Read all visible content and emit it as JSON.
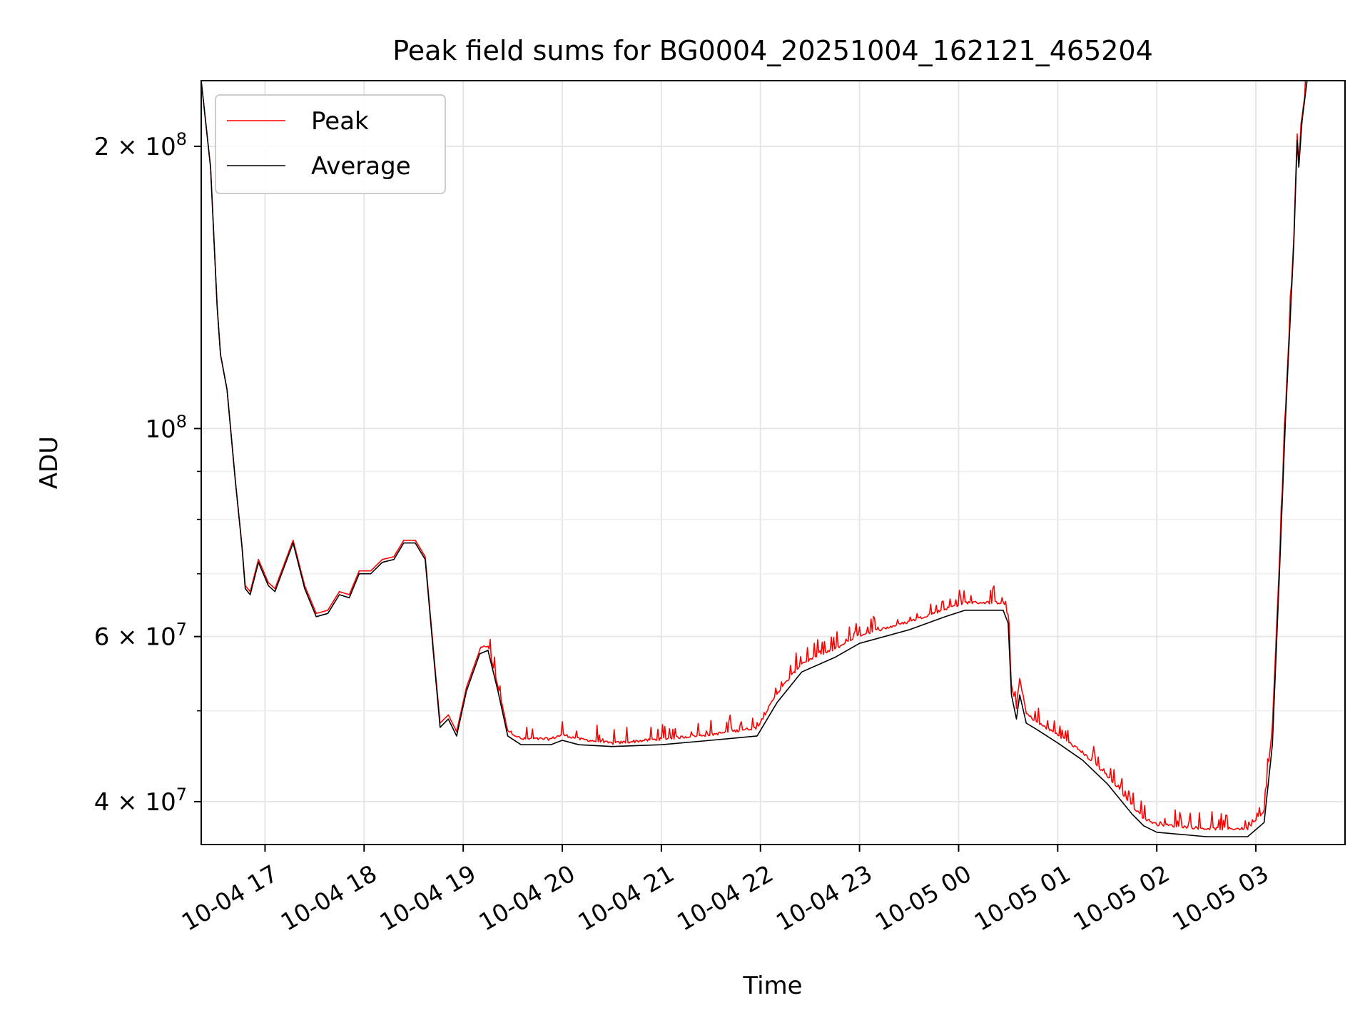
{
  "chart_data": {
    "type": "line",
    "title": "Peak field sums for BG0004_20251004_162121_465204",
    "xlabel": "Time",
    "ylabel": "ADU",
    "yscale": "log",
    "ylim": [
      36000000,
      235000000
    ],
    "xlim": [
      "2025-10-04T16:21:21",
      "2025-10-05T03:54:00"
    ],
    "grid": true,
    "legend_position": "upper left",
    "x_ticks": [
      {
        "t": "2025-10-04T17:00",
        "label": "10-04 17"
      },
      {
        "t": "2025-10-04T18:00",
        "label": "10-04 18"
      },
      {
        "t": "2025-10-04T19:00",
        "label": "10-04 19"
      },
      {
        "t": "2025-10-04T20:00",
        "label": "10-04 20"
      },
      {
        "t": "2025-10-04T21:00",
        "label": "10-04 21"
      },
      {
        "t": "2025-10-04T22:00",
        "label": "10-04 22"
      },
      {
        "t": "2025-10-04T23:00",
        "label": "10-04 23"
      },
      {
        "t": "2025-10-05T00:00",
        "label": "10-05 00"
      },
      {
        "t": "2025-10-05T01:00",
        "label": "10-05 01"
      },
      {
        "t": "2025-10-05T02:00",
        "label": "10-05 02"
      },
      {
        "t": "2025-10-05T03:00",
        "label": "10-05 03"
      }
    ],
    "y_ticks_major": [
      {
        "v": 40000000,
        "mant": "4",
        "exp": "7"
      },
      {
        "v": 60000000,
        "mant": "6",
        "exp": "7"
      },
      {
        "v": 100000000,
        "mant": "",
        "exp": "8"
      },
      {
        "v": 200000000,
        "mant": "2",
        "exp": "8"
      }
    ],
    "y_ticks_minor": [
      50000000,
      70000000,
      80000000,
      90000000
    ],
    "series": [
      {
        "name": "Peak",
        "color": "#ff0000",
        "spiky": true,
        "points": [
          [
            "2025-10-04T16:21:21",
            235000000
          ],
          [
            "2025-10-04T16:27:00",
            190000000
          ],
          [
            "2025-10-04T16:31:00",
            135000000
          ],
          [
            "2025-10-04T16:33:00",
            120000000
          ],
          [
            "2025-10-04T16:37:00",
            110000000
          ],
          [
            "2025-10-04T16:42:00",
            88000000
          ],
          [
            "2025-10-04T16:46:00",
            75000000
          ],
          [
            "2025-10-04T16:48:00",
            68000000
          ],
          [
            "2025-10-04T16:51:00",
            67000000
          ],
          [
            "2025-10-04T16:56:00",
            72500000
          ],
          [
            "2025-10-04T17:02:00",
            68500000
          ],
          [
            "2025-10-04T17:06:00",
            67500000
          ],
          [
            "2025-10-04T17:12:00",
            72000000
          ],
          [
            "2025-10-04T17:17:00",
            76000000
          ],
          [
            "2025-10-04T17:24:00",
            68000000
          ],
          [
            "2025-10-04T17:31:00",
            63500000
          ],
          [
            "2025-10-04T17:38:00",
            64000000
          ],
          [
            "2025-10-04T17:45:00",
            67000000
          ],
          [
            "2025-10-04T17:51:00",
            66500000
          ],
          [
            "2025-10-04T17:57:00",
            70500000
          ],
          [
            "2025-10-04T18:04:00",
            70500000
          ],
          [
            "2025-10-04T18:11:00",
            72500000
          ],
          [
            "2025-10-04T18:18:00",
            73000000
          ],
          [
            "2025-10-04T18:24:00",
            76000000
          ],
          [
            "2025-10-04T18:31:00",
            76000000
          ],
          [
            "2025-10-04T18:37:00",
            73000000
          ],
          [
            "2025-10-04T18:42:00",
            58000000
          ],
          [
            "2025-10-04T18:46:00",
            48500000
          ],
          [
            "2025-10-04T18:51:00",
            49500000
          ],
          [
            "2025-10-04T18:56:00",
            47500000
          ],
          [
            "2025-10-04T19:02:00",
            53000000
          ],
          [
            "2025-10-04T19:10:00",
            58000000
          ],
          [
            "2025-10-04T19:15:00",
            58500000
          ],
          [
            "2025-10-04T19:21:00",
            53000000
          ],
          [
            "2025-10-04T19:27:00",
            47500000
          ],
          [
            "2025-10-04T19:35:00",
            46500000
          ],
          [
            "2025-10-04T19:53:00",
            46500000
          ],
          [
            "2025-10-04T20:00:00",
            47000000
          ],
          [
            "2025-10-04T20:10:00",
            46500000
          ],
          [
            "2025-10-04T20:30:00",
            46000000
          ],
          [
            "2025-10-04T21:00:00",
            46500000
          ],
          [
            "2025-10-04T21:30:00",
            47000000
          ],
          [
            "2025-10-04T21:58:00",
            47800000
          ],
          [
            "2025-10-04T22:10:00",
            52000000
          ],
          [
            "2025-10-04T22:25:00",
            56000000
          ],
          [
            "2025-10-04T22:45:00",
            58000000
          ],
          [
            "2025-10-04T23:00:00",
            60000000
          ],
          [
            "2025-10-04T23:30:00",
            62000000
          ],
          [
            "2025-10-04T23:52:00",
            64000000
          ],
          [
            "2025-10-05T00:04:00",
            65000000
          ],
          [
            "2025-10-05T00:27:00",
            65000000
          ],
          [
            "2025-10-05T00:30:00",
            63000000
          ],
          [
            "2025-10-05T00:32:00",
            53000000
          ],
          [
            "2025-10-05T00:35:00",
            50000000
          ],
          [
            "2025-10-05T00:37:00",
            54000000
          ],
          [
            "2025-10-05T00:41:00",
            49500000
          ],
          [
            "2025-10-05T00:47:00",
            48500000
          ],
          [
            "2025-10-05T01:00:00",
            47000000
          ],
          [
            "2025-10-05T01:15:00",
            45000000
          ],
          [
            "2025-10-05T01:30:00",
            42500000
          ],
          [
            "2025-10-05T01:45:00",
            39500000
          ],
          [
            "2025-10-05T01:52:00",
            38300000
          ],
          [
            "2025-10-05T02:00:00",
            37700000
          ],
          [
            "2025-10-05T02:30:00",
            37300000
          ],
          [
            "2025-10-05T02:55:00",
            37300000
          ],
          [
            "2025-10-05T03:05:00",
            39000000
          ],
          [
            "2025-10-05T03:10:00",
            48000000
          ],
          [
            "2025-10-05T03:14:00",
            70000000
          ],
          [
            "2025-10-05T03:18:00",
            105000000
          ],
          [
            "2025-10-05T03:23:00",
            160000000
          ],
          [
            "2025-10-05T03:25:00",
            205000000
          ],
          [
            "2025-10-05T03:26:00",
            192000000
          ],
          [
            "2025-10-05T03:28:00",
            215000000
          ],
          [
            "2025-10-05T03:31:00",
            235000000
          ],
          [
            "2025-10-05T03:54:00",
            235000000
          ]
        ]
      },
      {
        "name": "Average",
        "color": "#000000",
        "spiky": false,
        "points": [
          [
            "2025-10-04T16:21:21",
            235000000
          ],
          [
            "2025-10-04T16:27:00",
            190000000
          ],
          [
            "2025-10-04T16:31:00",
            135000000
          ],
          [
            "2025-10-04T16:33:00",
            120000000
          ],
          [
            "2025-10-04T16:37:00",
            110000000
          ],
          [
            "2025-10-04T16:42:00",
            88000000
          ],
          [
            "2025-10-04T16:46:00",
            75000000
          ],
          [
            "2025-10-04T16:48:00",
            67500000
          ],
          [
            "2025-10-04T16:51:00",
            66500000
          ],
          [
            "2025-10-04T16:56:00",
            72000000
          ],
          [
            "2025-10-04T17:02:00",
            68000000
          ],
          [
            "2025-10-04T17:06:00",
            67000000
          ],
          [
            "2025-10-04T17:12:00",
            71500000
          ],
          [
            "2025-10-04T17:17:00",
            75500000
          ],
          [
            "2025-10-04T17:24:00",
            67500000
          ],
          [
            "2025-10-04T17:31:00",
            63000000
          ],
          [
            "2025-10-04T17:38:00",
            63500000
          ],
          [
            "2025-10-04T17:45:00",
            66500000
          ],
          [
            "2025-10-04T17:51:00",
            66000000
          ],
          [
            "2025-10-04T17:57:00",
            70000000
          ],
          [
            "2025-10-04T18:04:00",
            70000000
          ],
          [
            "2025-10-04T18:11:00",
            72000000
          ],
          [
            "2025-10-04T18:18:00",
            72500000
          ],
          [
            "2025-10-04T18:24:00",
            75500000
          ],
          [
            "2025-10-04T18:31:00",
            75500000
          ],
          [
            "2025-10-04T18:37:00",
            72500000
          ],
          [
            "2025-10-04T18:42:00",
            57500000
          ],
          [
            "2025-10-04T18:46:00",
            48000000
          ],
          [
            "2025-10-04T18:51:00",
            49000000
          ],
          [
            "2025-10-04T18:56:00",
            47000000
          ],
          [
            "2025-10-04T19:02:00",
            52500000
          ],
          [
            "2025-10-04T19:10:00",
            57500000
          ],
          [
            "2025-10-04T19:15:00",
            58000000
          ],
          [
            "2025-10-04T19:21:00",
            52500000
          ],
          [
            "2025-10-04T19:27:00",
            47000000
          ],
          [
            "2025-10-04T19:35:00",
            46000000
          ],
          [
            "2025-10-04T19:53:00",
            46000000
          ],
          [
            "2025-10-04T20:00:00",
            46500000
          ],
          [
            "2025-10-04T20:10:00",
            46000000
          ],
          [
            "2025-10-04T20:30:00",
            45800000
          ],
          [
            "2025-10-04T21:00:00",
            46000000
          ],
          [
            "2025-10-04T21:30:00",
            46500000
          ],
          [
            "2025-10-04T21:58:00",
            47000000
          ],
          [
            "2025-10-04T22:10:00",
            51000000
          ],
          [
            "2025-10-04T22:25:00",
            55000000
          ],
          [
            "2025-10-04T22:45:00",
            57000000
          ],
          [
            "2025-10-04T23:00:00",
            59000000
          ],
          [
            "2025-10-04T23:30:00",
            61000000
          ],
          [
            "2025-10-04T23:52:00",
            63000000
          ],
          [
            "2025-10-05T00:04:00",
            64000000
          ],
          [
            "2025-10-05T00:27:00",
            64000000
          ],
          [
            "2025-10-05T00:30:00",
            62000000
          ],
          [
            "2025-10-05T00:32:00",
            52000000
          ],
          [
            "2025-10-05T00:35:00",
            49000000
          ],
          [
            "2025-10-05T00:37:00",
            52000000
          ],
          [
            "2025-10-05T00:41:00",
            48500000
          ],
          [
            "2025-10-05T00:47:00",
            47800000
          ],
          [
            "2025-10-05T01:00:00",
            46200000
          ],
          [
            "2025-10-05T01:15:00",
            44300000
          ],
          [
            "2025-10-05T01:30:00",
            41800000
          ],
          [
            "2025-10-05T01:45:00",
            38800000
          ],
          [
            "2025-10-05T01:52:00",
            37700000
          ],
          [
            "2025-10-05T02:00:00",
            37100000
          ],
          [
            "2025-10-05T02:30:00",
            36700000
          ],
          [
            "2025-10-05T02:55:00",
            36700000
          ],
          [
            "2025-10-05T03:05:00",
            38000000
          ],
          [
            "2025-10-05T03:10:00",
            46000000
          ],
          [
            "2025-10-05T03:14:00",
            68000000
          ],
          [
            "2025-10-05T03:18:00",
            103000000
          ],
          [
            "2025-10-05T03:23:00",
            158000000
          ],
          [
            "2025-10-05T03:25:00",
            203000000
          ],
          [
            "2025-10-05T03:26:00",
            190000000
          ],
          [
            "2025-10-05T03:28:00",
            213000000
          ],
          [
            "2025-10-05T03:31:00",
            235000000
          ],
          [
            "2025-10-05T03:54:00",
            235000000
          ]
        ]
      }
    ]
  }
}
